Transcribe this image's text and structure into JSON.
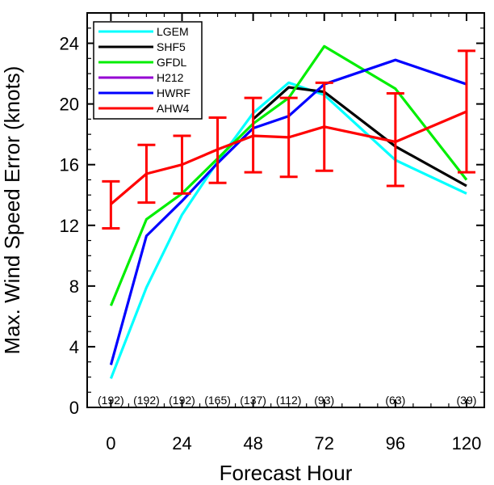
{
  "chart_data": {
    "type": "line",
    "title": "",
    "xlabel": "Forecast Hour",
    "ylabel": "Max. Wind Speed Error (knots)",
    "xlim": [
      -8,
      126
    ],
    "ylim": [
      0,
      26
    ],
    "xticks": [
      0,
      24,
      48,
      72,
      96,
      120
    ],
    "yticks": [
      0,
      4,
      8,
      12,
      16,
      20,
      24
    ],
    "x_tick_labels": [
      "0",
      "24",
      "48",
      "72",
      "96",
      "120"
    ],
    "y_tick_labels": [
      "0",
      "4",
      "8",
      "12",
      "16",
      "20",
      "24"
    ],
    "grid": false,
    "legend_position": "top-left",
    "series": [
      {
        "name": "LGEM",
        "color": "#00ffff",
        "x": [
          0,
          12,
          24,
          36,
          48,
          60,
          72,
          96,
          120
        ],
        "y": [
          1.9,
          7.9,
          12.7,
          16.2,
          19.4,
          21.4,
          20.6,
          16.3,
          14.1
        ]
      },
      {
        "name": "SHF5",
        "color": "#000000",
        "x": [
          48,
          60,
          72,
          96,
          120
        ],
        "y": [
          19.0,
          21.1,
          20.8,
          17.2,
          14.6
        ]
      },
      {
        "name": "GFDL",
        "color": "#00ee00",
        "x": [
          0,
          12,
          24,
          36,
          48,
          60,
          72,
          96,
          120
        ],
        "y": [
          6.7,
          12.4,
          14.1,
          16.4,
          18.7,
          20.4,
          23.8,
          21.0,
          15.0
        ]
      },
      {
        "name": "H212",
        "color": "#9400d3",
        "x": [],
        "y": []
      },
      {
        "name": "HWRF",
        "color": "#0000ff",
        "x": [
          0,
          12,
          24,
          36,
          48,
          60,
          72,
          96,
          120
        ],
        "y": [
          2.8,
          11.3,
          13.6,
          16.1,
          18.4,
          19.2,
          21.3,
          22.9,
          21.3
        ]
      },
      {
        "name": "AHW4",
        "color": "#ff0000",
        "x": [
          0,
          12,
          24,
          36,
          48,
          60,
          72,
          96,
          120
        ],
        "y": [
          13.4,
          15.4,
          16.0,
          17.0,
          17.9,
          17.8,
          18.5,
          17.5,
          19.5
        ],
        "error_low": [
          11.8,
          13.5,
          14.1,
          14.8,
          15.5,
          15.2,
          15.6,
          14.6,
          15.5
        ],
        "error_high": [
          14.9,
          17.3,
          17.9,
          19.1,
          20.4,
          20.4,
          21.4,
          20.7,
          23.5
        ]
      }
    ],
    "sample_counts": {
      "x": [
        0,
        12,
        24,
        36,
        48,
        60,
        72,
        96,
        120
      ],
      "labels": [
        "(192)",
        "(192)",
        "(192)",
        "(165)",
        "(137)",
        "(112)",
        "(93)",
        "(63)",
        "(39)"
      ]
    }
  }
}
